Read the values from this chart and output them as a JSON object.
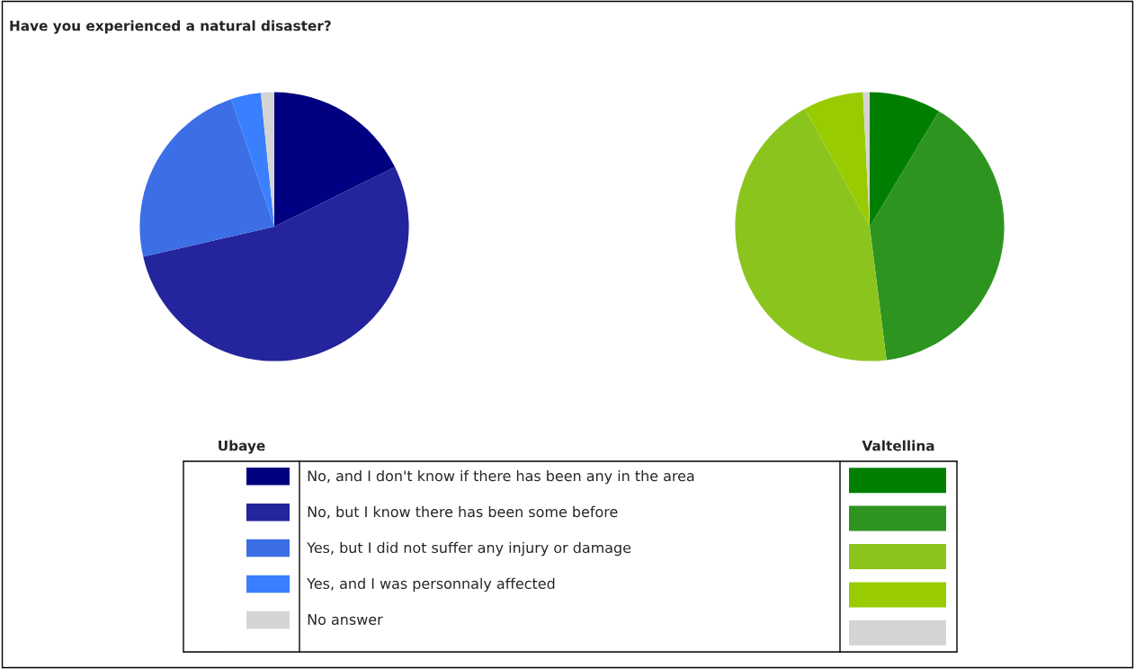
{
  "chart_data": [
    {
      "type": "pie",
      "title": "Have you experienced a natural disaster?",
      "legend_title": "Ubaye",
      "legend": "bottom",
      "categories": [
        "No, and I don't know if there has been any in the area",
        "No, but I know there has been some before",
        "Yes, but I did not suffer any injury or damage",
        "Yes, and I was personnaly affected",
        "No answer"
      ],
      "values": [
        17.7,
        53.7,
        23.4,
        3.6,
        1.6
      ],
      "colors": [
        "#000080",
        "#24249c",
        "#3c6ee6",
        "#3a7fff",
        "#d4d4d4"
      ]
    },
    {
      "type": "pie",
      "legend_title": "Valtellina",
      "categories": [
        null,
        null,
        null,
        null,
        null
      ],
      "values": [
        8.6,
        39.4,
        44.0,
        7.2,
        0.8
      ],
      "colors": [
        "#007f00",
        "#2e9420",
        "#8cc41e",
        "#99cc00",
        "#d4d4d4"
      ]
    }
  ]
}
